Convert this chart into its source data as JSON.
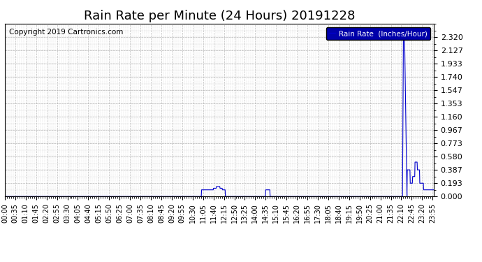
{
  "title": "Rain Rate per Minute (24 Hours) 20191228",
  "copyright_text": "Copyright 2019 Cartronics.com",
  "legend_label": "Rain Rate  (Inches/Hour)",
  "line_color": "#0000cc",
  "background_color": "#ffffff",
  "plot_bg_color": "#ffffff",
  "grid_color": "#aaaaaa",
  "legend_bg": "#0000aa",
  "legend_text_color": "#ffffff",
  "ylim": [
    0.0,
    2.513
  ],
  "yticks": [
    0.0,
    0.193,
    0.387,
    0.58,
    0.773,
    0.967,
    1.16,
    1.353,
    1.547,
    1.74,
    1.933,
    2.127,
    2.32
  ],
  "total_minutes": 1440,
  "x_tick_interval": 35,
  "title_fontsize": 13,
  "copyright_fontsize": 7.5,
  "tick_fontsize": 7,
  "ytick_fontsize": 8
}
